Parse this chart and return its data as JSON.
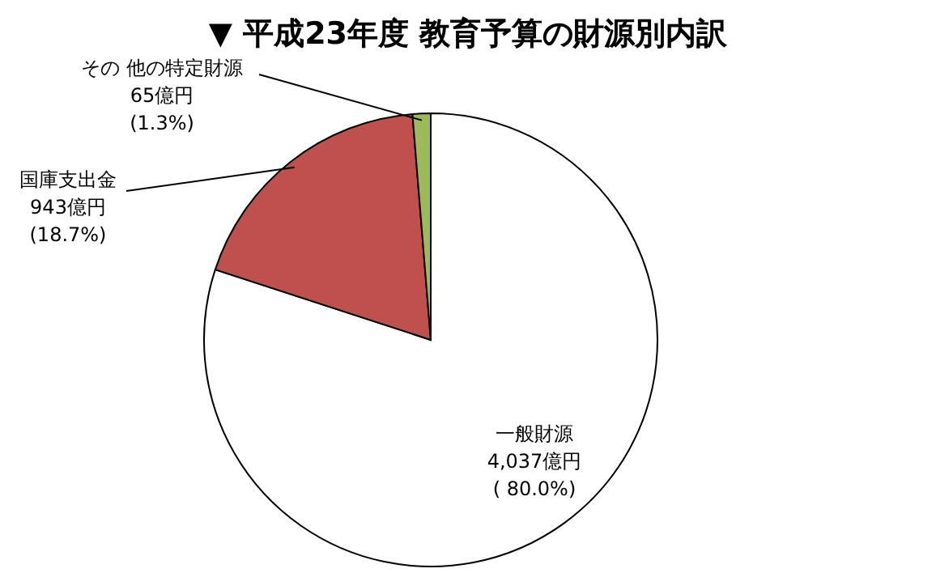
{
  "chart_data": {
    "type": "pie",
    "title": "▼ 平成23年度 教育予算の財源別内訳",
    "categories": [
      "一般財源",
      "国庫支出金",
      "その 他の特定財源"
    ],
    "values": [
      4037,
      943,
      65
    ],
    "colors": [
      "#ffffff",
      "#c0504d",
      "#9bbb59"
    ],
    "value_labels": [
      "4,037億円\n( 80.0%)",
      "943億円\n(18.7%)",
      "65億円\n(1.3%)"
    ],
    "legend": false
  }
}
